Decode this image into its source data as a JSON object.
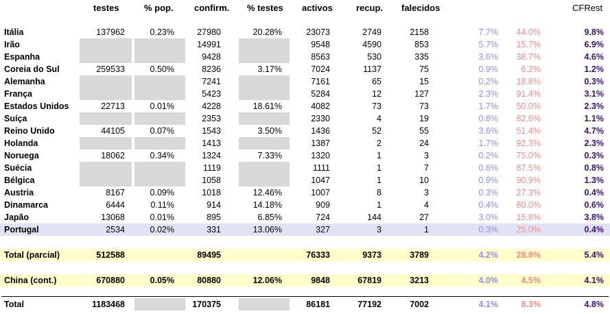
{
  "headers": {
    "testes": "testes",
    "pop": "% pop.",
    "confirm": "confirm.",
    "ptestes": "% testes",
    "activos": "activos",
    "recup": "recup.",
    "falecidos": "falecidos",
    "cfrest": "CFRest"
  },
  "rows": [
    {
      "name": "Itália",
      "testes": "137962",
      "pop": "0.23%",
      "confirm": "27980",
      "ptestes": "20.28%",
      "activos": "23073",
      "recup": "2749",
      "falecidos": "2158",
      "p1": "7.7%",
      "p2": "44.0%",
      "cfrest": "9.8%"
    },
    {
      "name": "Irão",
      "testes": "",
      "pop": "",
      "confirm": "14991",
      "ptestes": "",
      "activos": "9548",
      "recup": "4590",
      "falecidos": "853",
      "p1": "5.7%",
      "p2": "15.7%",
      "cfrest": "6.9%"
    },
    {
      "name": "Espanha",
      "testes": "",
      "pop": "",
      "confirm": "9428",
      "ptestes": "",
      "activos": "8563",
      "recup": "530",
      "falecidos": "335",
      "p1": "3.6%",
      "p2": "38.7%",
      "cfrest": "4.6%"
    },
    {
      "name": "Coreia do Sul",
      "testes": "259533",
      "pop": "0.50%",
      "confirm": "8236",
      "ptestes": "3.17%",
      "activos": "7024",
      "recup": "1137",
      "falecidos": "75",
      "p1": "0.9%",
      "p2": "6.2%",
      "cfrest": "1.2%"
    },
    {
      "name": "Alemanha",
      "testes": "",
      "pop": "",
      "confirm": "7241",
      "ptestes": "",
      "activos": "7161",
      "recup": "65",
      "falecidos": "15",
      "p1": "0.2%",
      "p2": "18.8%",
      "cfrest": "0.3%"
    },
    {
      "name": "França",
      "testes": "",
      "pop": "",
      "confirm": "5423",
      "ptestes": "",
      "activos": "5284",
      "recup": "12",
      "falecidos": "127",
      "p1": "2.3%",
      "p2": "91.4%",
      "cfrest": "3.1%"
    },
    {
      "name": "Estados Unidos",
      "testes": "22713",
      "pop": "0.01%",
      "confirm": "4228",
      "ptestes": "18.61%",
      "activos": "4082",
      "recup": "73",
      "falecidos": "73",
      "p1": "1.7%",
      "p2": "50.0%",
      "cfrest": "2.3%"
    },
    {
      "name": "Suíça",
      "testes": "",
      "pop": "",
      "confirm": "2353",
      "ptestes": "",
      "activos": "2330",
      "recup": "4",
      "falecidos": "19",
      "p1": "0.8%",
      "p2": "82.6%",
      "cfrest": "1.1%"
    },
    {
      "name": "Reino Unido",
      "testes": "44105",
      "pop": "0.07%",
      "confirm": "1543",
      "ptestes": "3.50%",
      "activos": "1436",
      "recup": "52",
      "falecidos": "55",
      "p1": "3.6%",
      "p2": "51.4%",
      "cfrest": "4.7%"
    },
    {
      "name": "Holanda",
      "testes": "",
      "pop": "",
      "confirm": "1413",
      "ptestes": "",
      "activos": "1387",
      "recup": "2",
      "falecidos": "24",
      "p1": "1.7%",
      "p2": "92.3%",
      "cfrest": "2.3%"
    },
    {
      "name": "Noruega",
      "testes": "18062",
      "pop": "0.34%",
      "confirm": "1324",
      "ptestes": "7.33%",
      "activos": "1320",
      "recup": "1",
      "falecidos": "3",
      "p1": "0.2%",
      "p2": "75.0%",
      "cfrest": "0.3%"
    },
    {
      "name": "Suécia",
      "testes": "",
      "pop": "",
      "confirm": "1119",
      "ptestes": "",
      "activos": "1111",
      "recup": "1",
      "falecidos": "7",
      "p1": "0.6%",
      "p2": "87.5%",
      "cfrest": "0.8%"
    },
    {
      "name": "Bélgica",
      "testes": "",
      "pop": "",
      "confirm": "1058",
      "ptestes": "",
      "activos": "1047",
      "recup": "1",
      "falecidos": "10",
      "p1": "0.9%",
      "p2": "90.9%",
      "cfrest": "1.3%"
    },
    {
      "name": "Austria",
      "testes": "8167",
      "pop": "0.09%",
      "confirm": "1018",
      "ptestes": "12.46%",
      "activos": "1007",
      "recup": "8",
      "falecidos": "3",
      "p1": "0.3%",
      "p2": "27.3%",
      "cfrest": "0.4%"
    },
    {
      "name": "Dinamarca",
      "testes": "6444",
      "pop": "0.11%",
      "confirm": "914",
      "ptestes": "14.18%",
      "activos": "909",
      "recup": "1",
      "falecidos": "4",
      "p1": "0.4%",
      "p2": "80.0%",
      "cfrest": "0.6%"
    },
    {
      "name": "Japão",
      "testes": "13068",
      "pop": "0.01%",
      "confirm": "895",
      "ptestes": "6.85%",
      "activos": "724",
      "recup": "144",
      "falecidos": "27",
      "p1": "3.0%",
      "p2": "15.8%",
      "cfrest": "3.8%"
    },
    {
      "name": "Portugal",
      "testes": "2534",
      "pop": "0.02%",
      "confirm": "331",
      "ptestes": "13.06%",
      "activos": "327",
      "recup": "3",
      "falecidos": "1",
      "p1": "0.3%",
      "p2": "25.0%",
      "cfrest": "0.4%"
    }
  ],
  "total_parcial": {
    "name": "Total (parcial)",
    "testes": "512588",
    "pop": "",
    "confirm": "89495",
    "ptestes": "",
    "activos": "76333",
    "recup": "9373",
    "falecidos": "3789",
    "p1": "4.2%",
    "p2": "28.8%",
    "cfrest": "5.4%"
  },
  "china": {
    "name": "China (cont.)",
    "testes": "670880",
    "pop": "0.05%",
    "confirm": "80880",
    "ptestes": "12.06%",
    "activos": "9848",
    "recup": "67819",
    "falecidos": "3213",
    "p1": "4.0%",
    "p2": "4.5%",
    "cfrest": "4.1%"
  },
  "total": {
    "name": "Total",
    "testes": "1183468",
    "pop": "",
    "confirm": "170375",
    "ptestes": "",
    "activos": "86181",
    "recup": "77192",
    "falecidos": "7002",
    "p1": "4.1%",
    "p2": "8.3%",
    "cfrest": "4.8%"
  }
}
